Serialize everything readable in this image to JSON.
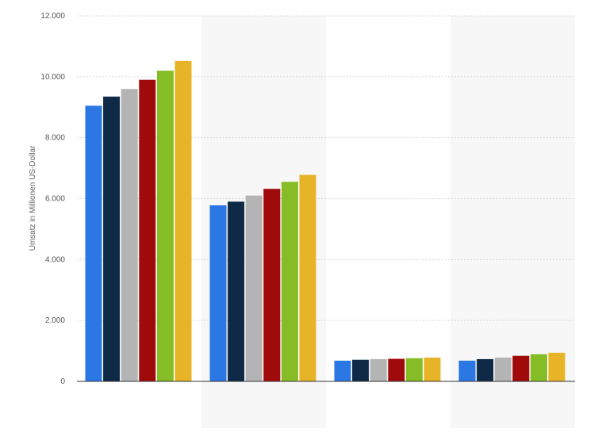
{
  "chart_data": {
    "type": "bar",
    "title": "",
    "xlabel": "",
    "ylabel": "Umsatz in Millionen US-Dollar",
    "ylim": [
      0,
      12000
    ],
    "yticks": [
      0,
      2000,
      4000,
      6000,
      8000,
      10000,
      12000
    ],
    "ytick_labels": [
      "0",
      "2.000",
      "4.000",
      "6.000",
      "8.000",
      "10.000",
      "12.000"
    ],
    "grid": true,
    "legend": "none",
    "categories": [
      "",
      "",
      "",
      ""
    ],
    "series": [
      {
        "color": "#2b78e4",
        "values": [
          9050,
          5780,
          680,
          680
        ]
      },
      {
        "color": "#0f2a47",
        "values": [
          9350,
          5900,
          710,
          730
        ]
      },
      {
        "color": "#b4b4b4",
        "values": [
          9600,
          6100,
          730,
          780
        ]
      },
      {
        "color": "#a10a0a",
        "values": [
          9900,
          6320,
          740,
          840
        ]
      },
      {
        "color": "#86bc25",
        "values": [
          10200,
          6550,
          760,
          890
        ]
      },
      {
        "color": "#e8b427",
        "values": [
          10520,
          6780,
          780,
          940
        ]
      }
    ],
    "band_colors": [
      "#ffffff",
      "#f7f7f7"
    ]
  }
}
